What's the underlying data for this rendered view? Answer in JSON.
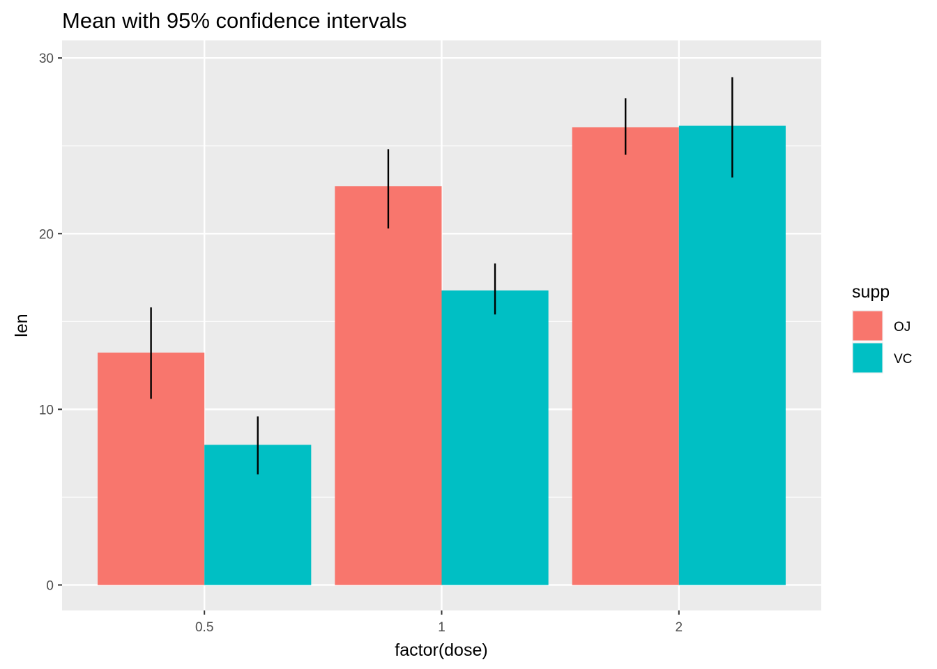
{
  "chart_data": {
    "type": "bar",
    "title": "Mean with 95% confidence intervals",
    "xlabel": "factor(dose)",
    "ylabel": "len",
    "categories": [
      "0.5",
      "1",
      "2"
    ],
    "series": [
      {
        "name": "OJ",
        "color": "#F8766D",
        "values": [
          13.23,
          22.7,
          26.06
        ],
        "ci_lower": [
          10.6,
          20.3,
          24.5
        ],
        "ci_upper": [
          15.8,
          24.8,
          27.7
        ]
      },
      {
        "name": "VC",
        "color": "#00BFC4",
        "values": [
          7.98,
          16.77,
          26.14
        ],
        "ci_lower": [
          6.3,
          15.4,
          23.2
        ],
        "ci_upper": [
          9.6,
          18.3,
          28.9
        ]
      }
    ],
    "yticks": [
      0,
      10,
      20,
      30
    ],
    "ytick_labels": [
      "0",
      "10",
      "20",
      "30"
    ],
    "ylim": [
      -1.45,
      31.0
    ],
    "grid": true,
    "legend": {
      "title": "supp",
      "position": "right"
    }
  }
}
